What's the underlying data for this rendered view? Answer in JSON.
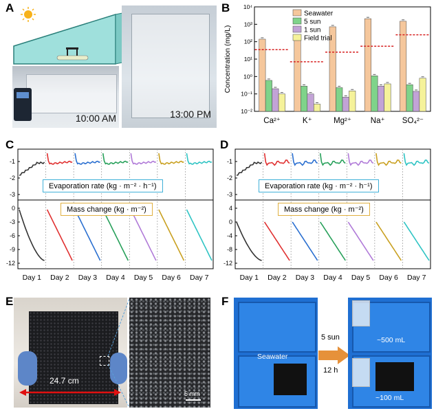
{
  "panels": {
    "A": {
      "label": "A",
      "time1": "10:00 AM",
      "time2": "13:00 PM"
    },
    "B": {
      "label": "B"
    },
    "C": {
      "label": "C",
      "top_tag": "Evaporation rate (kg · m⁻² · h⁻¹)",
      "bottom_tag": "Mass change (kg · m⁻²)",
      "top_ticks": [
        "-1",
        "-2",
        "-3"
      ],
      "bottom_ticks": [
        "0",
        "-3",
        "-6",
        "-9",
        "-12"
      ],
      "days": [
        "Day 1",
        "Day 2",
        "Day 3",
        "Day 4",
        "Day 5",
        "Day 6",
        "Day 7"
      ]
    },
    "D": {
      "label": "D",
      "top_tag": "Evaporation rate (kg · m⁻² · h⁻¹)",
      "bottom_tag": "Mass change (kg · m⁻²)",
      "top_ticks": [
        "-1",
        "-2",
        "-3"
      ],
      "bottom_ticks": [
        "4",
        "0",
        "-4",
        "-8",
        "-12"
      ],
      "days": [
        "Day 1",
        "Day 2",
        "Day 3",
        "Day 4",
        "Day 5",
        "Day 6",
        "Day 7"
      ]
    },
    "E": {
      "label": "E",
      "width_annotation": "24.7 cm",
      "scale_bar": "5 mm"
    },
    "F": {
      "label": "F",
      "seawater": "Seawater",
      "condition1": "5 sun",
      "condition2": "12 h",
      "vol1": "~500 mL",
      "vol2": "~100 mL"
    }
  },
  "colors": {
    "seawater": "#f5c79c",
    "sun5": "#7fd38a",
    "sun1": "#c2a3d6",
    "field": "#f5f29a",
    "limit_line": "#d62020",
    "days": [
      "#333333",
      "#e03030",
      "#2a6fd0",
      "#27a05a",
      "#b07ad8",
      "#c9a020",
      "#2fc4c4"
    ]
  },
  "chart_data": [
    {
      "type": "bar",
      "panel": "B",
      "ylabel": "Concentration (mg/L)",
      "yscale": "log",
      "ylim": [
        0.01,
        10000
      ],
      "ytick_labels": [
        "10⁻²",
        "10⁻¹",
        "10⁰",
        "10¹",
        "10²",
        "10³",
        "10⁴"
      ],
      "categories": [
        "Ca²⁺",
        "K⁺",
        "Mg²⁺",
        "Na⁺",
        "SO₄²⁻"
      ],
      "series": [
        {
          "name": "Seawater",
          "values": [
            140,
            190,
            720,
            2100,
            1500
          ]
        },
        {
          "name": "5 sun",
          "values": [
            0.6,
            0.28,
            0.23,
            1.1,
            0.34
          ]
        },
        {
          "name": "1 sun",
          "values": [
            0.2,
            0.1,
            0.065,
            0.28,
            0.14
          ]
        },
        {
          "name": "Field trial",
          "values": [
            0.1,
            0.026,
            0.15,
            0.38,
            0.8
          ]
        }
      ],
      "limit_values": [
        35,
        7,
        25,
        55,
        250
      ]
    }
  ]
}
